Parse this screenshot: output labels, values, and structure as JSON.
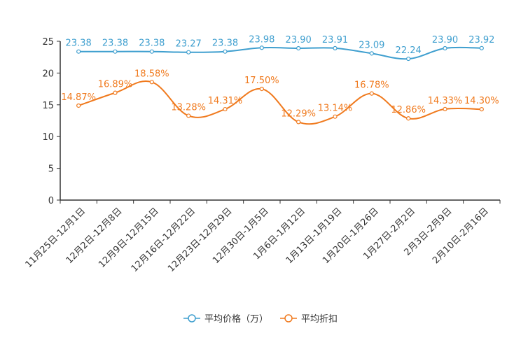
{
  "chart_data": {
    "type": "line",
    "title": "",
    "xlabel": "",
    "ylabel": "",
    "ylim": [
      0,
      25
    ],
    "yticks": [
      0,
      5,
      10,
      15,
      20,
      25
    ],
    "grid": false,
    "legend_position": "bottom-center",
    "categories": [
      "11月25日-12月1日",
      "12月2日-12月8日",
      "12月9日-12月15日",
      "12月16日-12月22日",
      "12月23日-12月29日",
      "12月30日-1月5日",
      "1月6日-1月12日",
      "1月13日-1月19日",
      "1月20日-1月26日",
      "1月27日-2月2日",
      "2月3日-2月9日",
      "2月10日-2月16日"
    ],
    "series": [
      {
        "name": "平均价格（万）",
        "color": "#3f9fcf",
        "values": [
          23.38,
          23.38,
          23.38,
          23.27,
          23.38,
          23.98,
          23.9,
          23.91,
          23.09,
          22.24,
          23.9,
          23.92
        ],
        "labels": [
          "23.38",
          "23.38",
          "23.38",
          "23.27",
          "23.38",
          "23.98",
          "23.90",
          "23.91",
          "23.09",
          "22.24",
          "23.90",
          "23.92"
        ]
      },
      {
        "name": "平均折扣",
        "color": "#f07a1e",
        "values": [
          14.87,
          16.89,
          18.58,
          13.28,
          14.31,
          17.5,
          12.29,
          13.14,
          16.78,
          12.86,
          14.33,
          14.3
        ],
        "labels": [
          "14.87%",
          "16.89%",
          "18.58%",
          "13.28%",
          "14.31%",
          "17.50%",
          "12.29%",
          "13.14%",
          "16.78%",
          "12.86%",
          "14.33%",
          "14.30%"
        ]
      }
    ]
  }
}
